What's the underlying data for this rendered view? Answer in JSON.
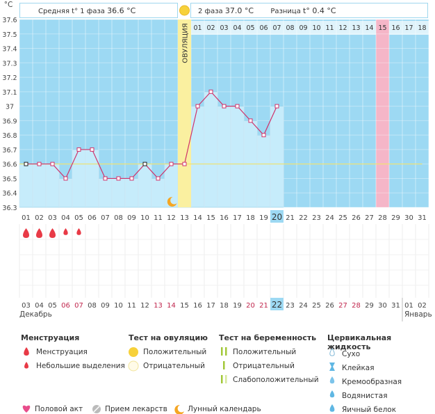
{
  "header": {
    "phase1_label": "Средняя t° 1 фаза",
    "phase1_value": "36.6 °C",
    "phase2_label": "2 фаза",
    "phase2_value": "37.0 °C",
    "diff_label": "Разница",
    "diff_value": "t° 0.4 °C"
  },
  "unit_label": "°C",
  "ovulation_label": "ОВУЛЯЦИЯ",
  "month_labels": {
    "first": "Декабрь",
    "second": "Январь"
  },
  "chart_data": {
    "type": "line",
    "ylabel": "°C",
    "ylim": [
      36.3,
      37.6
    ],
    "yticks": [
      "37.6",
      "37.5",
      "37.4",
      "37.3",
      "37.2",
      "37.1",
      "37",
      "36.9",
      "36.8",
      "36.7",
      "36.6",
      "36.5",
      "36.4",
      "36.3"
    ],
    "cycle_days": [
      "01",
      "02",
      "03",
      "04",
      "05",
      "06",
      "07",
      "08",
      "09",
      "10",
      "11",
      "12",
      "13",
      "14",
      "15",
      "16",
      "17",
      "18",
      "19",
      "20",
      "21",
      "22",
      "23",
      "24",
      "25",
      "26",
      "27",
      "28",
      "29",
      "30",
      "31"
    ],
    "calendar_dates": [
      "03",
      "04",
      "05",
      "06",
      "07",
      "08",
      "09",
      "10",
      "11",
      "12",
      "13",
      "14",
      "15",
      "16",
      "17",
      "18",
      "19",
      "20",
      "21",
      "22",
      "23",
      "24",
      "25",
      "26",
      "27",
      "28",
      "29",
      "30",
      "31",
      "01",
      "02"
    ],
    "weekend_dates_highlighted": [
      "06",
      "07",
      "13",
      "14",
      "20",
      "21",
      "27",
      "28"
    ],
    "phase2_day_numbers": [
      "01",
      "02",
      "03",
      "04",
      "05",
      "06",
      "07",
      "08",
      "09",
      "10",
      "11",
      "12",
      "13",
      "14",
      "15",
      "16",
      "17",
      "18"
    ],
    "temperatures": [
      36.6,
      36.6,
      36.6,
      36.5,
      36.7,
      36.7,
      36.5,
      36.5,
      36.5,
      36.6,
      36.5,
      36.6,
      36.6,
      37.0,
      37.1,
      37.0,
      37.0,
      36.9,
      36.8,
      37.0
    ],
    "coverline": 36.6,
    "ovulation_day": "13",
    "current_day": "20",
    "current_date": "22",
    "highlight_phase2_day": "15",
    "menstruation_days": [
      "01",
      "02",
      "03",
      "04",
      "05"
    ],
    "menstruation_heavy_days": [
      "01",
      "02",
      "03"
    ],
    "moon_day": "12",
    "colors": {
      "background": "#9dd9f3",
      "bar_fill": "#c6ecfb",
      "line": "#d0326a",
      "coverline": "#f0e26a",
      "ovulation": "#faf0a0",
      "highlight_day": "#f5b6c8",
      "menstruation": "#e83a46",
      "moon": "#f5a623"
    }
  },
  "legend": {
    "menstruation": {
      "title": "Менструация",
      "items": [
        "Менструация",
        "Небольшие выделения"
      ]
    },
    "ovulation_test": {
      "title": "Тест на овуляцию",
      "items": [
        "Положительный",
        "Отрицательный"
      ]
    },
    "pregnancy_test": {
      "title": "Тест на беременность",
      "items": [
        "Положительный",
        "Отрицательный",
        "Слабоположительный"
      ]
    },
    "cervical_fluid": {
      "title": "Цервикальная жидкость",
      "items": [
        "Сухо",
        "Клейкая",
        "Кремообразная",
        "Водянистая",
        "Яичный белок"
      ]
    },
    "bottom": [
      "Половой акт",
      "Прием лекарств",
      "Лунный календарь"
    ]
  }
}
